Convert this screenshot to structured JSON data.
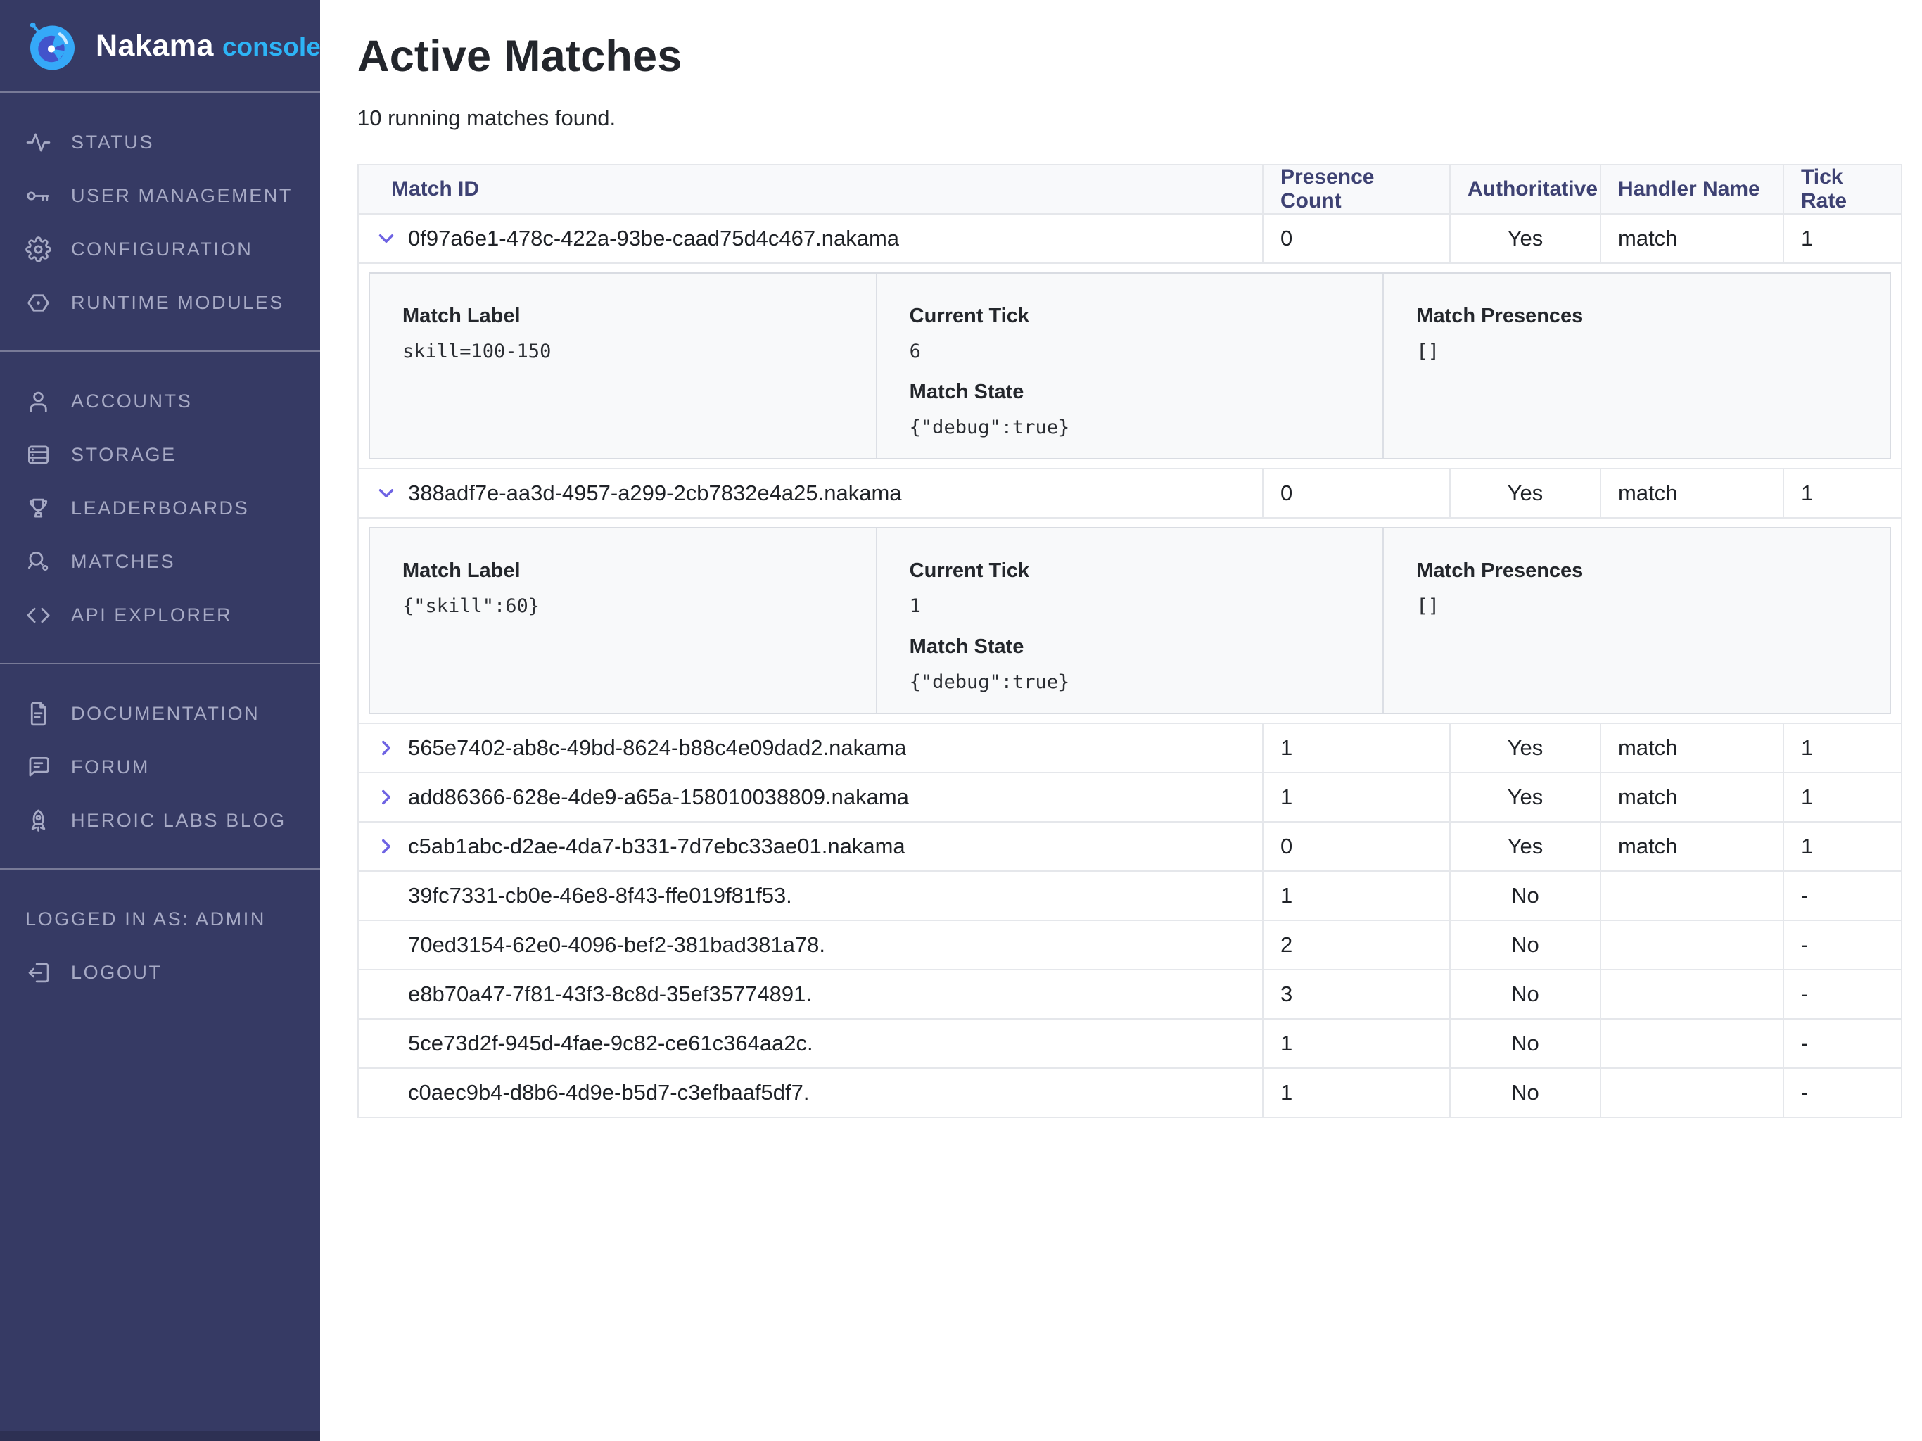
{
  "colors": {
    "sidebar_bg": "#363a64",
    "sidebar_text": "#a7aac5",
    "accent_blue": "#2db4f6",
    "logo_blue": "#35a9f8",
    "logo_indigo": "#4254cb",
    "chevron_purple": "#6e63e3",
    "table_header_text": "#3e4273",
    "table_border": "#e5e7eb",
    "panel_bg": "#f8f9fa"
  },
  "sidebar": {
    "logo": {
      "brand": "Nakama",
      "product": "console"
    },
    "sections": [
      {
        "name": "system",
        "items": [
          {
            "id": "status",
            "icon": "activity-icon",
            "label": "STATUS"
          },
          {
            "id": "user-management",
            "icon": "key-icon",
            "label": "USER MANAGEMENT"
          },
          {
            "id": "configuration",
            "icon": "gear-icon",
            "label": "CONFIGURATION"
          },
          {
            "id": "runtime-modules",
            "icon": "hexagon-dot-icon",
            "label": "RUNTIME MODULES"
          }
        ]
      },
      {
        "name": "data",
        "items": [
          {
            "id": "accounts",
            "icon": "user-icon",
            "label": "ACCOUNTS"
          },
          {
            "id": "storage",
            "icon": "server-icon",
            "label": "STORAGE"
          },
          {
            "id": "leaderboards",
            "icon": "trophy-icon",
            "label": "LEADERBOARDS"
          },
          {
            "id": "matches",
            "icon": "search-ball-icon",
            "label": "MATCHES"
          },
          {
            "id": "api-explorer",
            "icon": "code-icon",
            "label": "API EXPLORER"
          }
        ]
      },
      {
        "name": "external",
        "items": [
          {
            "id": "documentation",
            "icon": "file-text-icon",
            "label": "DOCUMENTATION"
          },
          {
            "id": "forum",
            "icon": "message-icon",
            "label": "FORUM"
          },
          {
            "id": "heroic-labs-blog",
            "icon": "rocket-icon",
            "label": "HEROIC LABS BLOG"
          }
        ]
      },
      {
        "name": "session",
        "items": [
          {
            "id": "logged-in-as",
            "icon": null,
            "label": "LOGGED IN AS: ADMIN",
            "interactable": false
          },
          {
            "id": "logout",
            "icon": "logout-icon",
            "label": "LOGOUT"
          }
        ]
      }
    ]
  },
  "header": {
    "title": "Active Matches",
    "subtitle": "10 running matches found."
  },
  "table": {
    "columns": [
      "Match ID",
      "Presence Count",
      "Authoritative",
      "Handler Name",
      "Tick Rate"
    ],
    "rows": [
      {
        "match_id": "0f97a6e1-478c-422a-93be-caad75d4c467.nakama",
        "presence_count": "0",
        "authoritative": "Yes",
        "handler_name": "match",
        "tick_rate": "1",
        "chevron": "down",
        "expanded": true,
        "detail_columns": [
          [
            {
              "label": "Match Label",
              "value": "skill=100-150"
            }
          ],
          [
            {
              "label": "Current Tick",
              "value": "6"
            },
            {
              "label": "Match State",
              "value": "{\"debug\":true}"
            }
          ],
          [
            {
              "label": "Match Presences",
              "value": "[]"
            }
          ]
        ]
      },
      {
        "match_id": "388adf7e-aa3d-4957-a299-2cb7832e4a25.nakama",
        "presence_count": "0",
        "authoritative": "Yes",
        "handler_name": "match",
        "tick_rate": "1",
        "chevron": "down",
        "expanded": true,
        "detail_columns": [
          [
            {
              "label": "Match Label",
              "value": "{\"skill\":60}"
            }
          ],
          [
            {
              "label": "Current Tick",
              "value": "1"
            },
            {
              "label": "Match State",
              "value": "{\"debug\":true}"
            }
          ],
          [
            {
              "label": "Match Presences",
              "value": "[]"
            }
          ]
        ]
      },
      {
        "match_id": "565e7402-ab8c-49bd-8624-b88c4e09dad2.nakama",
        "presence_count": "1",
        "authoritative": "Yes",
        "handler_name": "match",
        "tick_rate": "1",
        "chevron": "right",
        "expanded": false
      },
      {
        "match_id": "add86366-628e-4de9-a65a-158010038809.nakama",
        "presence_count": "1",
        "authoritative": "Yes",
        "handler_name": "match",
        "tick_rate": "1",
        "chevron": "right",
        "expanded": false
      },
      {
        "match_id": "c5ab1abc-d2ae-4da7-b331-7d7ebc33ae01.nakama",
        "presence_count": "0",
        "authoritative": "Yes",
        "handler_name": "match",
        "tick_rate": "1",
        "chevron": "right",
        "expanded": false
      },
      {
        "match_id": "39fc7331-cb0e-46e8-8f43-ffe019f81f53.",
        "presence_count": "1",
        "authoritative": "No",
        "handler_name": "",
        "tick_rate": "-",
        "chevron": null,
        "expanded": false
      },
      {
        "match_id": "70ed3154-62e0-4096-bef2-381bad381a78.",
        "presence_count": "2",
        "authoritative": "No",
        "handler_name": "",
        "tick_rate": "-",
        "chevron": null,
        "expanded": false
      },
      {
        "match_id": "e8b70a47-7f81-43f3-8c8d-35ef35774891.",
        "presence_count": "3",
        "authoritative": "No",
        "handler_name": "",
        "tick_rate": "-",
        "chevron": null,
        "expanded": false
      },
      {
        "match_id": "5ce73d2f-945d-4fae-9c82-ce61c364aa2c.",
        "presence_count": "1",
        "authoritative": "No",
        "handler_name": "",
        "tick_rate": "-",
        "chevron": null,
        "expanded": false
      },
      {
        "match_id": "c0aec9b4-d8b6-4d9e-b5d7-c3efbaaf5df7.",
        "presence_count": "1",
        "authoritative": "No",
        "handler_name": "",
        "tick_rate": "-",
        "chevron": null,
        "expanded": false
      }
    ]
  }
}
